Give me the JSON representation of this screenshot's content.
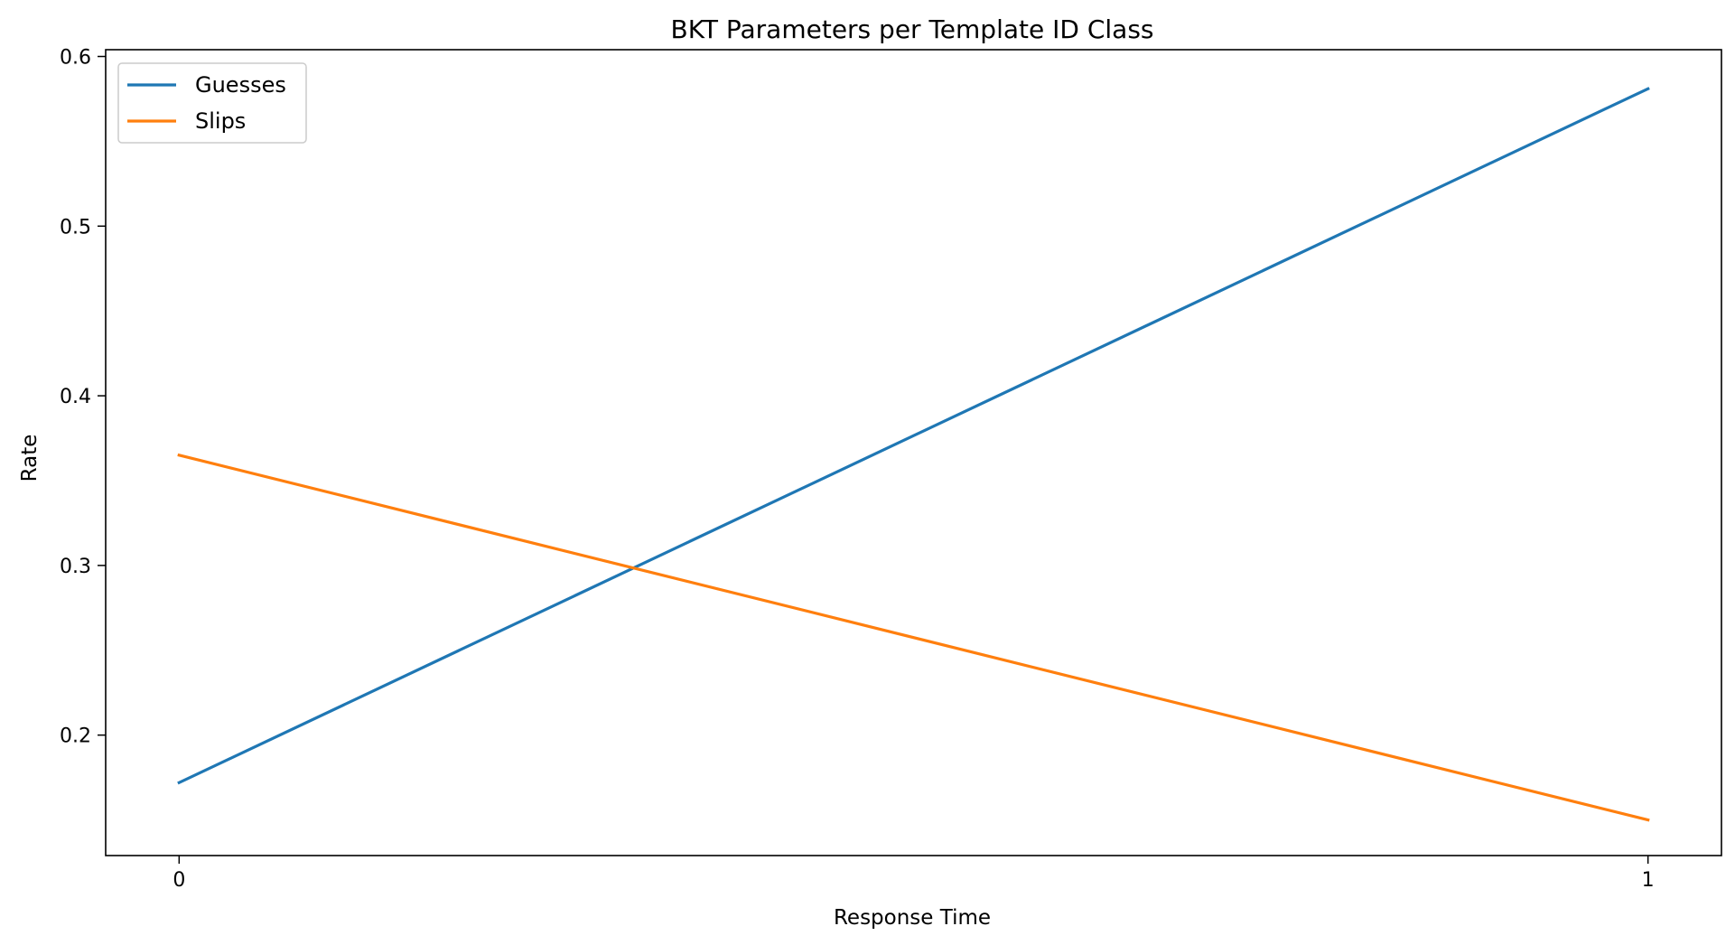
{
  "chart_data": {
    "type": "line",
    "title": "BKT Parameters per Template ID Class",
    "xlabel": "Response Time",
    "ylabel": "Rate",
    "x": [
      0,
      1
    ],
    "xticks": [
      "0",
      "1"
    ],
    "yticks": [
      "0.2",
      "0.3",
      "0.4",
      "0.5",
      "0.6"
    ],
    "xlim": [
      -0.05,
      1.05
    ],
    "ylim": [
      0.129,
      0.604
    ],
    "grid": false,
    "legend_position": "top-left",
    "series": [
      {
        "name": "Guesses",
        "color": "#1f77b4",
        "values": [
          0.172,
          0.581
        ]
      },
      {
        "name": "Slips",
        "color": "#ff7f0e",
        "values": [
          0.365,
          0.15
        ]
      }
    ]
  }
}
